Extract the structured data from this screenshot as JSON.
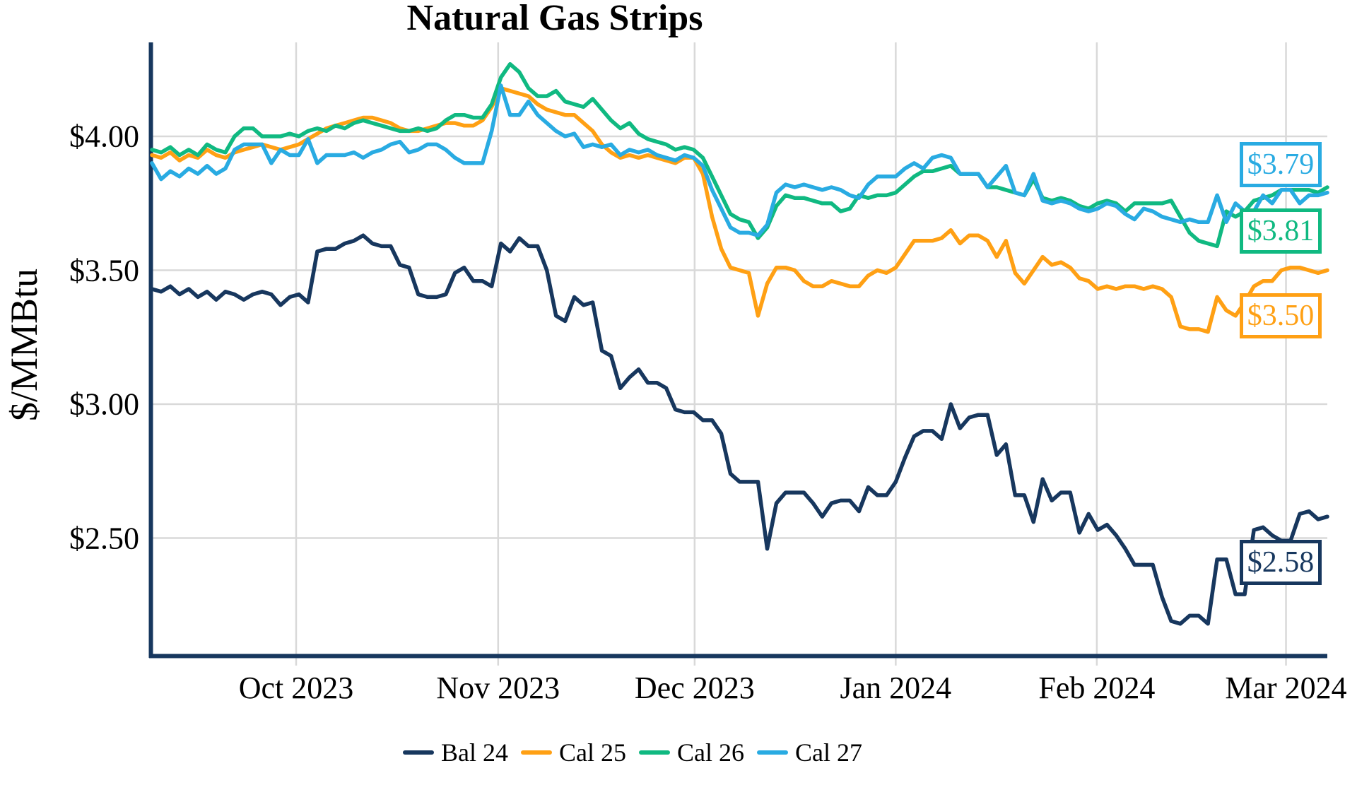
{
  "chart_data": {
    "type": "line",
    "title": "Natural Gas Strips",
    "ylabel": "$/MMBtu",
    "ylim": [
      2.06,
      4.35
    ],
    "grid": true,
    "legend_position": "bottom",
    "x_unit": "daily settlements (business days), mid-Sep 2023 through early Mar 2024",
    "x_range_days": [
      0,
      128
    ],
    "y_ticks": [
      {
        "label": "$4.00",
        "value": 4.0
      },
      {
        "label": "$3.50",
        "value": 3.5
      },
      {
        "label": "$3.00",
        "value": 3.0
      },
      {
        "label": "$2.50",
        "value": 2.5
      }
    ],
    "x_ticks": [
      {
        "label": "Oct 2023",
        "d": 15.7
      },
      {
        "label": "Nov 2023",
        "d": 37.7
      },
      {
        "label": "Dec 2023",
        "d": 59.1
      },
      {
        "label": "Jan 2024",
        "d": 81.0
      },
      {
        "label": "Feb 2024",
        "d": 102.9
      },
      {
        "label": "Mar 2024",
        "d": 123.5
      }
    ],
    "series": [
      {
        "name": "Bal 24",
        "color": "#17375E",
        "end_label": "$2.58",
        "end_value": 2.58,
        "values": [
          3.43,
          3.42,
          3.44,
          3.41,
          3.43,
          3.4,
          3.42,
          3.39,
          3.42,
          3.41,
          3.39,
          3.41,
          3.42,
          3.41,
          3.37,
          3.4,
          3.41,
          3.38,
          3.57,
          3.58,
          3.58,
          3.6,
          3.61,
          3.63,
          3.6,
          3.59,
          3.59,
          3.52,
          3.51,
          3.41,
          3.4,
          3.4,
          3.41,
          3.49,
          3.51,
          3.46,
          3.46,
          3.44,
          3.6,
          3.57,
          3.62,
          3.59,
          3.59,
          3.5,
          3.33,
          3.31,
          3.4,
          3.37,
          3.38,
          3.2,
          3.18,
          3.06,
          3.1,
          3.13,
          3.08,
          3.08,
          3.06,
          2.98,
          2.97,
          2.97,
          2.94,
          2.94,
          2.89,
          2.74,
          2.71,
          2.71,
          2.71,
          2.46,
          2.63,
          2.67,
          2.67,
          2.67,
          2.63,
          2.58,
          2.63,
          2.64,
          2.64,
          2.6,
          2.69,
          2.66,
          2.66,
          2.71,
          2.8,
          2.88,
          2.9,
          2.9,
          2.87,
          3.0,
          2.91,
          2.95,
          2.96,
          2.96,
          2.81,
          2.85,
          2.66,
          2.66,
          2.56,
          2.72,
          2.64,
          2.67,
          2.67,
          2.52,
          2.59,
          2.53,
          2.55,
          2.51,
          2.46,
          2.4,
          2.4,
          2.4,
          2.28,
          2.19,
          2.18,
          2.21,
          2.21,
          2.18,
          2.42,
          2.42,
          2.29,
          2.29,
          2.53,
          2.54,
          2.51,
          2.49,
          2.49,
          2.59,
          2.6,
          2.57,
          2.58
        ]
      },
      {
        "name": "Cal 25",
        "color": "#FFA014",
        "end_label": "$3.50",
        "end_value": 3.5,
        "values": [
          3.93,
          3.92,
          3.94,
          3.91,
          3.93,
          3.92,
          3.95,
          3.93,
          3.92,
          3.94,
          3.95,
          3.96,
          3.97,
          3.96,
          3.95,
          3.96,
          3.97,
          3.99,
          4.01,
          4.03,
          4.04,
          4.05,
          4.06,
          4.07,
          4.07,
          4.06,
          4.05,
          4.03,
          4.02,
          4.02,
          4.03,
          4.04,
          4.05,
          4.05,
          4.04,
          4.04,
          4.06,
          4.11,
          4.18,
          4.17,
          4.16,
          4.15,
          4.12,
          4.1,
          4.09,
          4.08,
          4.08,
          4.05,
          4.02,
          3.97,
          3.94,
          3.92,
          3.93,
          3.92,
          3.93,
          3.92,
          3.91,
          3.9,
          3.92,
          3.92,
          3.86,
          3.7,
          3.58,
          3.51,
          3.5,
          3.49,
          3.33,
          3.45,
          3.51,
          3.51,
          3.5,
          3.46,
          3.44,
          3.44,
          3.46,
          3.45,
          3.44,
          3.44,
          3.48,
          3.5,
          3.49,
          3.51,
          3.56,
          3.61,
          3.61,
          3.61,
          3.62,
          3.65,
          3.6,
          3.63,
          3.63,
          3.61,
          3.55,
          3.61,
          3.49,
          3.45,
          3.5,
          3.55,
          3.52,
          3.53,
          3.51,
          3.47,
          3.46,
          3.43,
          3.44,
          3.43,
          3.44,
          3.44,
          3.43,
          3.44,
          3.43,
          3.4,
          3.29,
          3.28,
          3.28,
          3.27,
          3.4,
          3.35,
          3.33,
          3.38,
          3.44,
          3.46,
          3.46,
          3.5,
          3.51,
          3.51,
          3.5,
          3.49,
          3.5
        ]
      },
      {
        "name": "Cal 26",
        "color": "#10B981",
        "end_label": "$3.81",
        "end_value": 3.81,
        "values": [
          3.95,
          3.94,
          3.96,
          3.93,
          3.95,
          3.93,
          3.97,
          3.95,
          3.94,
          4.0,
          4.03,
          4.03,
          4.0,
          4.0,
          4.0,
          4.01,
          4.0,
          4.02,
          4.03,
          4.02,
          4.04,
          4.03,
          4.05,
          4.06,
          4.05,
          4.04,
          4.03,
          4.02,
          4.02,
          4.03,
          4.02,
          4.03,
          4.06,
          4.08,
          4.08,
          4.07,
          4.07,
          4.12,
          4.22,
          4.27,
          4.24,
          4.18,
          4.15,
          4.15,
          4.17,
          4.13,
          4.12,
          4.11,
          4.14,
          4.1,
          4.06,
          4.03,
          4.05,
          4.01,
          3.99,
          3.98,
          3.97,
          3.95,
          3.96,
          3.95,
          3.92,
          3.85,
          3.78,
          3.71,
          3.69,
          3.68,
          3.62,
          3.66,
          3.74,
          3.78,
          3.77,
          3.77,
          3.76,
          3.75,
          3.75,
          3.72,
          3.73,
          3.78,
          3.77,
          3.78,
          3.78,
          3.79,
          3.82,
          3.85,
          3.87,
          3.87,
          3.88,
          3.89,
          3.86,
          3.86,
          3.86,
          3.81,
          3.81,
          3.8,
          3.79,
          3.78,
          3.84,
          3.77,
          3.76,
          3.77,
          3.76,
          3.74,
          3.73,
          3.75,
          3.76,
          3.75,
          3.72,
          3.75,
          3.75,
          3.75,
          3.75,
          3.76,
          3.7,
          3.64,
          3.61,
          3.6,
          3.59,
          3.72,
          3.7,
          3.72,
          3.76,
          3.77,
          3.78,
          3.8,
          3.8,
          3.8,
          3.8,
          3.79,
          3.81
        ]
      },
      {
        "name": "Cal 27",
        "color": "#29ABE2",
        "end_label": "$3.79",
        "end_value": 3.79,
        "values": [
          3.9,
          3.84,
          3.87,
          3.85,
          3.88,
          3.86,
          3.89,
          3.86,
          3.88,
          3.95,
          3.97,
          3.97,
          3.97,
          3.9,
          3.95,
          3.93,
          3.93,
          3.99,
          3.9,
          3.93,
          3.93,
          3.93,
          3.94,
          3.92,
          3.94,
          3.95,
          3.97,
          3.98,
          3.94,
          3.95,
          3.97,
          3.97,
          3.95,
          3.92,
          3.9,
          3.9,
          3.9,
          4.02,
          4.19,
          4.08,
          4.08,
          4.13,
          4.08,
          4.05,
          4.02,
          4.0,
          4.01,
          3.96,
          3.97,
          3.96,
          3.97,
          3.93,
          3.95,
          3.94,
          3.95,
          3.93,
          3.92,
          3.91,
          3.93,
          3.92,
          3.89,
          3.8,
          3.73,
          3.66,
          3.64,
          3.64,
          3.63,
          3.67,
          3.79,
          3.82,
          3.81,
          3.82,
          3.81,
          3.8,
          3.81,
          3.8,
          3.78,
          3.77,
          3.82,
          3.85,
          3.85,
          3.85,
          3.88,
          3.9,
          3.88,
          3.92,
          3.93,
          3.92,
          3.86,
          3.86,
          3.86,
          3.81,
          3.85,
          3.89,
          3.79,
          3.78,
          3.86,
          3.76,
          3.75,
          3.76,
          3.75,
          3.73,
          3.72,
          3.73,
          3.75,
          3.74,
          3.71,
          3.69,
          3.73,
          3.72,
          3.7,
          3.69,
          3.68,
          3.69,
          3.68,
          3.68,
          3.78,
          3.68,
          3.75,
          3.72,
          3.72,
          3.78,
          3.75,
          3.8,
          3.8,
          3.75,
          3.78,
          3.78,
          3.79
        ]
      }
    ],
    "colors": {
      "axis": "#17375E",
      "gridline": "#D9D9D9",
      "background": "#FFFFFF"
    }
  }
}
